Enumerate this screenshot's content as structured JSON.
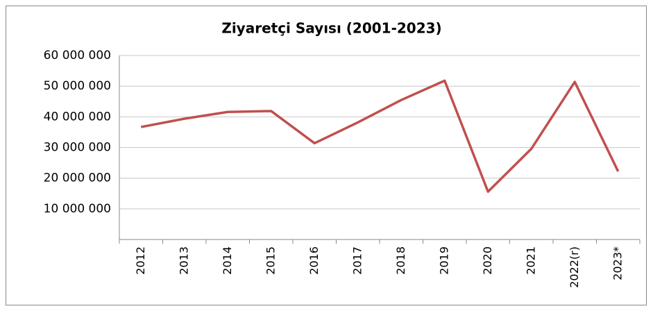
{
  "chart_data": {
    "type": "line",
    "title": "Ziyaretçi Sayısı (2001-2023)",
    "categories": [
      "2012",
      "2013",
      "2014",
      "2015",
      "2016",
      "2017",
      "2018",
      "2019",
      "2020",
      "2021",
      "2022(r)",
      "2023*"
    ],
    "series": [
      {
        "name": "Ziyaretçi Sayısı",
        "color": "#c0504d",
        "values": [
          36700000,
          39400000,
          41600000,
          41900000,
          31400000,
          38200000,
          45500000,
          51800000,
          15600000,
          29600000,
          51400000,
          22200000
        ]
      }
    ],
    "ylim": [
      0,
      60000000
    ],
    "yticks": [
      {
        "value": 10000000,
        "label": "10 000 000"
      },
      {
        "value": 20000000,
        "label": "20 000 000"
      },
      {
        "value": 30000000,
        "label": "30 000 000"
      },
      {
        "value": 40000000,
        "label": "40 000 000"
      },
      {
        "value": 50000000,
        "label": "50 000 000"
      },
      {
        "value": 60000000,
        "label": "60 000 000"
      }
    ],
    "grid": true
  }
}
